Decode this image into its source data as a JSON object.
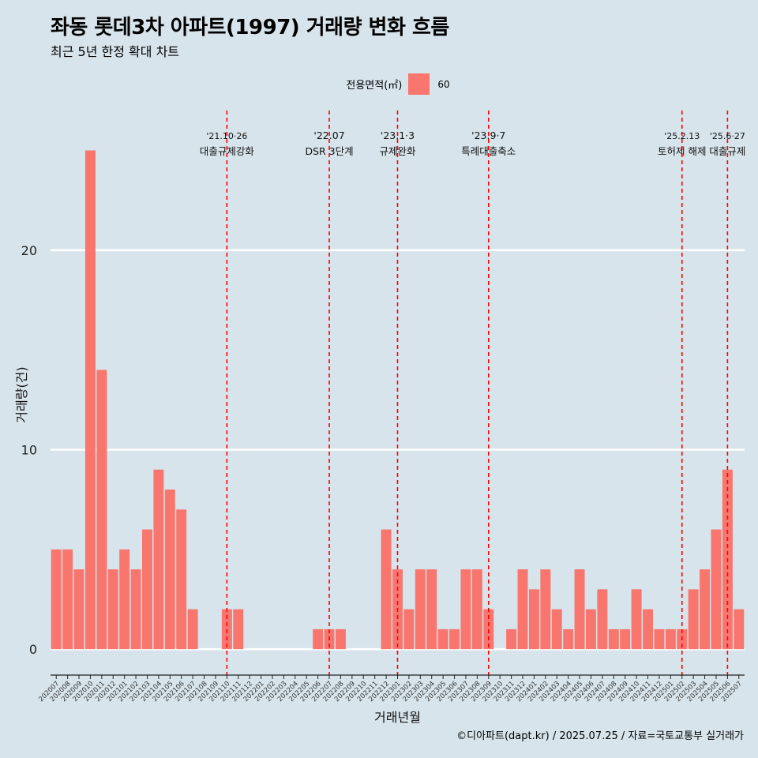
{
  "chart_data": {
    "type": "bar",
    "title": "좌동 롯데3차 아파트(1997) 거래량 변화 흐름",
    "subtitle": "최근 5년 한정 확대 차트",
    "xlabel": "거래년월",
    "ylabel": "거래량(건)",
    "ylim": [
      -1.3,
      27
    ],
    "yticks": [
      0,
      10,
      20
    ],
    "grid": true,
    "legend": {
      "title": "전용면적(㎡)",
      "position": "top",
      "entries": [
        {
          "label": "60",
          "color": "#f8766d"
        }
      ]
    },
    "categories": [
      "202007",
      "202008",
      "202009",
      "202010",
      "202011",
      "202012",
      "202101",
      "202102",
      "202103",
      "202104",
      "202105",
      "202106",
      "202107",
      "202108",
      "202109",
      "202110",
      "202111",
      "202112",
      "202201",
      "202202",
      "202203",
      "202204",
      "202205",
      "202206",
      "202207",
      "202208",
      "202209",
      "202210",
      "202211",
      "202212",
      "202301",
      "202302",
      "202303",
      "202304",
      "202305",
      "202306",
      "202307",
      "202308",
      "202309",
      "202310",
      "202311",
      "202312",
      "202401",
      "202402",
      "202403",
      "202404",
      "202405",
      "202406",
      "202407",
      "202408",
      "202409",
      "202410",
      "202411",
      "202412",
      "202501",
      "202502",
      "202503",
      "202504",
      "202505",
      "202506",
      "202507"
    ],
    "series": [
      {
        "name": "60",
        "color": "#f8766d",
        "values": [
          5,
          5,
          4,
          25,
          14,
          4,
          5,
          4,
          6,
          9,
          8,
          7,
          2,
          0,
          0,
          2,
          2,
          0,
          0,
          0,
          0,
          0,
          0,
          1,
          1,
          1,
          0,
          0,
          0,
          6,
          4,
          2,
          4,
          4,
          1,
          1,
          4,
          4,
          2,
          0,
          1,
          4,
          3,
          4,
          2,
          1,
          4,
          2,
          3,
          1,
          1,
          3,
          2,
          1,
          1,
          1,
          3,
          4,
          6,
          9,
          2
        ]
      }
    ],
    "annotations": [
      {
        "category": "202110",
        "date": "'21.10·26",
        "label": "대출규제강화"
      },
      {
        "category": "202207",
        "date": "'22.07",
        "label": "DSR 3단계"
      },
      {
        "category": "202301",
        "date": "'23.1·3",
        "label": "규제완화"
      },
      {
        "category": "202309",
        "date": "'23.9·7",
        "label": "특례대출축소"
      },
      {
        "category": "202502",
        "date": "'25.2.13",
        "label": "토허제 해제"
      },
      {
        "category": "202506",
        "date": "'25.6·27",
        "label": "대출규제"
      }
    ],
    "annotation_color": "#ff0000",
    "caption": "©디아파트(dapt.kr) / 2025.07.25 / 자료=국토교통부 실거래가"
  }
}
